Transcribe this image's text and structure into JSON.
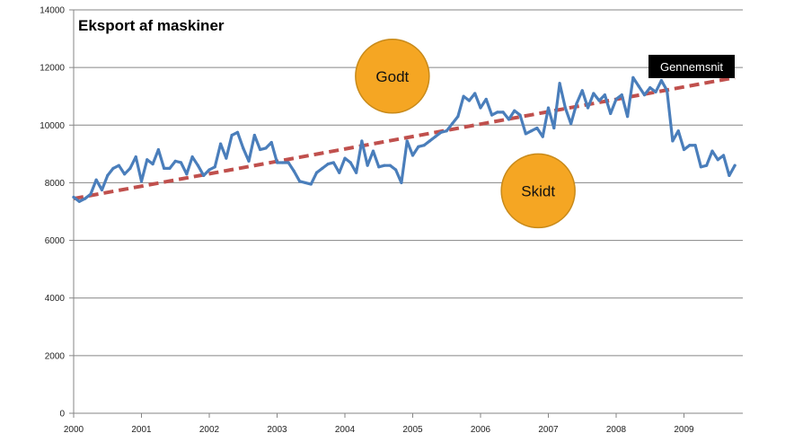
{
  "chart_data": {
    "type": "line",
    "title": "Eksport af maskiner",
    "xlabel": "",
    "ylabel": "",
    "ylim": [
      0,
      14000
    ],
    "yticks": [
      0,
      2000,
      4000,
      6000,
      8000,
      10000,
      12000,
      14000
    ],
    "xlim": [
      2000,
      2009.9
    ],
    "xticks": [
      "2000",
      "2001",
      "2002",
      "2003",
      "2004",
      "2005",
      "2006",
      "2007",
      "2008",
      "2009"
    ],
    "grid": "horizontal",
    "series": [
      {
        "color": "#4a7ebb",
        "x": [
          2000.0,
          2000.083,
          2000.167,
          2000.25,
          2000.333,
          2000.417,
          2000.5,
          2000.583,
          2000.667,
          2000.75,
          2000.833,
          2000.917,
          2001.0,
          2001.083,
          2001.167,
          2001.25,
          2001.333,
          2001.417,
          2001.5,
          2001.583,
          2001.667,
          2001.75,
          2001.833,
          2001.917,
          2002.0,
          2002.083,
          2002.167,
          2002.25,
          2002.333,
          2002.417,
          2002.5,
          2002.583,
          2002.667,
          2002.75,
          2002.833,
          2002.917,
          2003.0,
          2003.083,
          2003.167,
          2003.25,
          2003.333,
          2003.417,
          2003.5,
          2003.583,
          2003.667,
          2003.75,
          2003.833,
          2003.917,
          2004.0,
          2004.083,
          2004.167,
          2004.25,
          2004.333,
          2004.417,
          2004.5,
          2004.583,
          2004.667,
          2004.75,
          2004.833,
          2004.917,
          2005.0,
          2005.083,
          2005.167,
          2005.25,
          2005.333,
          2005.417,
          2005.5,
          2005.583,
          2005.667,
          2005.75,
          2005.833,
          2005.917,
          2006.0,
          2006.083,
          2006.167,
          2006.25,
          2006.333,
          2006.417,
          2006.5,
          2006.583,
          2006.667,
          2006.75,
          2006.833,
          2006.917,
          2007.0,
          2007.083,
          2007.167,
          2007.25,
          2007.333,
          2007.417,
          2007.5,
          2007.583,
          2007.667,
          2007.75,
          2007.833,
          2007.917,
          2008.0,
          2008.083,
          2008.167,
          2008.25,
          2008.333,
          2008.417,
          2008.5,
          2008.583,
          2008.667,
          2008.75,
          2008.833,
          2008.917,
          2009.0,
          2009.083,
          2009.167,
          2009.25,
          2009.333,
          2009.417,
          2009.5,
          2009.583,
          2009.667,
          2009.75
        ],
        "values": [
          7500,
          7350,
          7450,
          7600,
          8100,
          7750,
          8250,
          8500,
          8600,
          8300,
          8500,
          8900,
          8050,
          8800,
          8650,
          9150,
          8500,
          8500,
          8750,
          8700,
          8300,
          8900,
          8600,
          8250,
          8450,
          8550,
          9350,
          8850,
          9650,
          9750,
          9200,
          8750,
          9650,
          9150,
          9200,
          9400,
          8700,
          8700,
          8700,
          8400,
          8050,
          8000,
          7950,
          8350,
          8500,
          8650,
          8700,
          8350,
          8850,
          8700,
          8350,
          9450,
          8600,
          9100,
          8550,
          8600,
          8600,
          8450,
          8000,
          9450,
          8950,
          9250,
          9300,
          9450,
          9600,
          9750,
          9800,
          10050,
          10300,
          11000,
          10850,
          11100,
          10600,
          10900,
          10350,
          10450,
          10450,
          10200,
          10500,
          10350,
          9700,
          9800,
          9900,
          9600,
          10600,
          9900,
          11450,
          10600,
          10050,
          10750,
          11200,
          10600,
          11100,
          10850,
          11050,
          10400,
          10900,
          11050,
          10300,
          11650,
          11350,
          11050,
          11300,
          11150,
          11550,
          11200,
          9450,
          9800,
          9150,
          9300,
          9300,
          8550,
          8600,
          9100,
          8800,
          8950,
          8250,
          8600
        ]
      }
    ],
    "trendline": {
      "label": "Gennemsnit",
      "color": "#c0504d",
      "style": "dashed",
      "x": [
        2000.0,
        2009.75
      ],
      "values": [
        7450,
        11650
      ]
    },
    "annotations": [
      {
        "text": "Godt",
        "x": 2004.7,
        "y": 11700,
        "color": "#f5a623"
      },
      {
        "text": "Skidt",
        "x": 2006.85,
        "y": 7720,
        "color": "#f5a623"
      }
    ]
  }
}
